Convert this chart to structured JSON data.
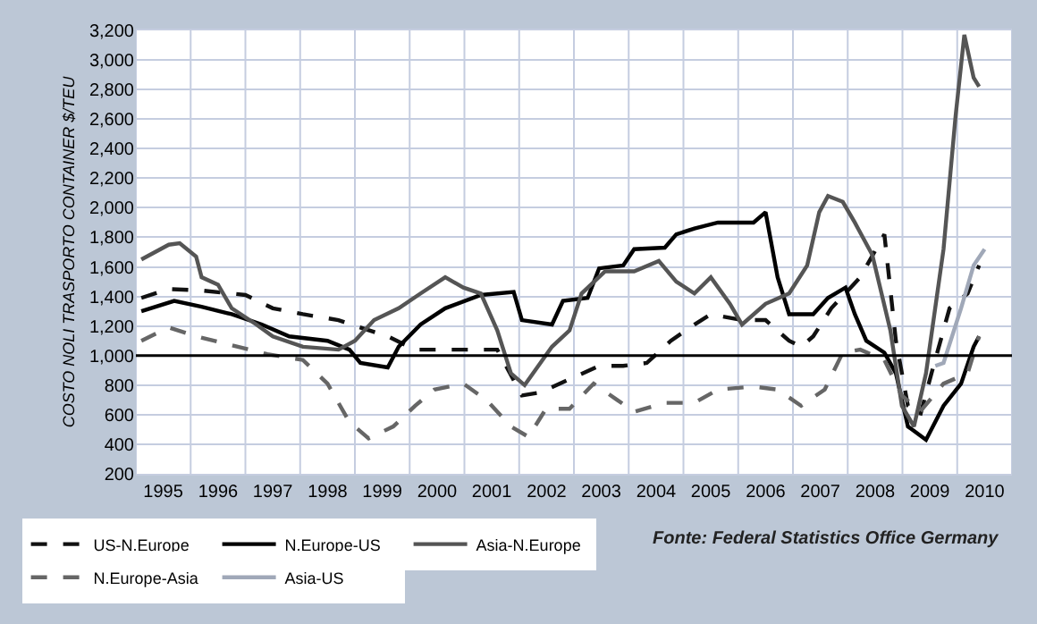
{
  "chart_data": {
    "type": "line",
    "ylabel": "COSTO NOLI TRASPORTO CONTAINER $/TEU",
    "annotations": [
      "Fonte: Federal Statistics Office Germany"
    ],
    "xlim": [
      1995,
      2011
    ],
    "xticks": [
      {
        "value": 1995,
        "label": null
      },
      {
        "value": 1995.5,
        "label": "1995"
      },
      {
        "value": 1996,
        "label": null
      },
      {
        "value": 1996.5,
        "label": "1996"
      },
      {
        "value": 1997,
        "label": null
      },
      {
        "value": 1997.5,
        "label": "1997"
      },
      {
        "value": 1998,
        "label": null
      },
      {
        "value": 1998.5,
        "label": "1998"
      },
      {
        "value": 1999,
        "label": null
      },
      {
        "value": 1999.5,
        "label": "1999"
      },
      {
        "value": 2000,
        "label": null
      },
      {
        "value": 2000.5,
        "label": "2000"
      },
      {
        "value": 2001,
        "label": null
      },
      {
        "value": 2001.5,
        "label": "2001"
      },
      {
        "value": 2002,
        "label": null
      },
      {
        "value": 2002.5,
        "label": "2002"
      },
      {
        "value": 2003,
        "label": null
      },
      {
        "value": 2003.5,
        "label": "2003"
      },
      {
        "value": 2004,
        "label": null
      },
      {
        "value": 2004.5,
        "label": "2004"
      },
      {
        "value": 2005,
        "label": null
      },
      {
        "value": 2005.5,
        "label": "2005"
      },
      {
        "value": 2006,
        "label": null
      },
      {
        "value": 2006.5,
        "label": "2006"
      },
      {
        "value": 2007,
        "label": null
      },
      {
        "value": 2007.5,
        "label": "2007"
      },
      {
        "value": 2008,
        "label": null
      },
      {
        "value": 2008.5,
        "label": "2008"
      },
      {
        "value": 2009,
        "label": null
      },
      {
        "value": 2009.5,
        "label": "2009"
      },
      {
        "value": 2010,
        "label": null
      },
      {
        "value": 2010.5,
        "label": "2010"
      },
      {
        "value": 2011,
        "label": null
      }
    ],
    "ylim": [
      200,
      3200
    ],
    "yticks": [
      {
        "value": 200,
        "label": "200"
      },
      {
        "value": 400,
        "label": "400"
      },
      {
        "value": 600,
        "label": "600"
      },
      {
        "value": 800,
        "label": "800"
      },
      {
        "value": 1000,
        "label": "1,000"
      },
      {
        "value": 1200,
        "label": "1,200"
      },
      {
        "value": 1400,
        "label": "1,400"
      },
      {
        "value": 1600,
        "label": "1,600"
      },
      {
        "value": 1800,
        "label": "1,800"
      },
      {
        "value": 2000,
        "label": "2,000"
      },
      {
        "value": 2200,
        "label": "2,200"
      },
      {
        "value": 2400,
        "label": "2,400"
      },
      {
        "value": 2600,
        "label": "2,600"
      },
      {
        "value": 2800,
        "label": "2,800"
      },
      {
        "value": 3000,
        "label": "3,000"
      },
      {
        "value": 3200,
        "label": "3,200"
      }
    ],
    "grid": true,
    "legend": "bottom left",
    "marker": "none",
    "ref_lines": [
      {
        "axis": "y",
        "value": 1000,
        "color": "#000000",
        "line_style": "solid"
      }
    ],
    "series": [
      {
        "name": "US-N.Europe",
        "color": "#111111",
        "line_style": "dashed",
        "x": [
          1995.1,
          1995.6,
          1996.2,
          1997.0,
          1997.5,
          1998.05,
          1998.7,
          1999.1,
          1999.6,
          2000.1,
          2000.9,
          2001.6,
          2002.05,
          2002.38,
          2002.92,
          2003.46,
          2003.9,
          2004.33,
          2004.77,
          2005.2,
          2005.5,
          2006.07,
          2006.5,
          2006.93,
          2007.15,
          2007.37,
          2007.7,
          2008.23,
          2008.67,
          2008.88,
          2009.1,
          2009.32,
          2009.53,
          2009.86,
          2010.19,
          2010.4
        ],
        "values": [
          1390,
          1450,
          1440,
          1410,
          1320,
          1280,
          1240,
          1190,
          1130,
          1040,
          1040,
          1040,
          730,
          750,
          840,
          930,
          930,
          950,
          1100,
          1210,
          1280,
          1240,
          1240,
          1100,
          1060,
          1130,
          1320,
          1530,
          1820,
          1100,
          660,
          590,
          880,
          1320,
          1420,
          1610
        ]
      },
      {
        "name": "N.Europe-US",
        "color": "#000000",
        "line_style": "solid",
        "x": [
          1995.1,
          1995.7,
          1996.2,
          1996.75,
          1997.3,
          1997.8,
          1998.5,
          1998.9,
          1999.1,
          1999.6,
          1999.8,
          2000.2,
          2000.65,
          2001.3,
          2001.9,
          2002.05,
          2002.6,
          2002.8,
          2003.25,
          2003.46,
          2003.9,
          2004.1,
          2004.66,
          2004.87,
          2005.2,
          2005.63,
          2006.28,
          2006.5,
          2006.72,
          2006.93,
          2007.37,
          2007.64,
          2007.96,
          2008.13,
          2008.34,
          2008.67,
          2008.88,
          2009.1,
          2009.43,
          2009.75,
          2010.07,
          2010.3,
          2010.4
        ],
        "values": [
          1300,
          1370,
          1330,
          1280,
          1210,
          1130,
          1100,
          1040,
          950,
          920,
          1060,
          1210,
          1320,
          1410,
          1430,
          1240,
          1210,
          1370,
          1390,
          1590,
          1610,
          1720,
          1730,
          1820,
          1860,
          1900,
          1900,
          1970,
          1530,
          1280,
          1280,
          1390,
          1460,
          1280,
          1100,
          1020,
          880,
          520,
          430,
          660,
          810,
          1060,
          1130
        ]
      },
      {
        "name": "Asia-N.Europe",
        "color": "#555555",
        "line_style": "solid",
        "x": [
          1995.1,
          1995.6,
          1995.8,
          1996.1,
          1996.2,
          1996.5,
          1996.75,
          1997.2,
          1997.5,
          1998.05,
          1998.7,
          1999.0,
          1999.35,
          1999.8,
          2000.2,
          2000.65,
          2000.98,
          2001.3,
          2001.6,
          2001.85,
          2002.1,
          2002.6,
          2002.92,
          2003.14,
          2003.57,
          2004.1,
          2004.55,
          2004.87,
          2005.2,
          2005.5,
          2005.85,
          2006.07,
          2006.5,
          2006.93,
          2007.26,
          2007.48,
          2007.64,
          2007.91,
          2008.13,
          2008.45,
          2008.78,
          2008.99,
          2009.21,
          2009.43,
          2009.75,
          2009.97,
          2010.13,
          2010.3,
          2010.4
        ],
        "values": [
          1650,
          1750,
          1760,
          1670,
          1530,
          1480,
          1320,
          1210,
          1130,
          1060,
          1040,
          1100,
          1240,
          1320,
          1420,
          1530,
          1460,
          1420,
          1170,
          880,
          800,
          1060,
          1170,
          1420,
          1570,
          1570,
          1640,
          1500,
          1420,
          1530,
          1350,
          1210,
          1350,
          1420,
          1610,
          1970,
          2080,
          2040,
          1900,
          1680,
          1170,
          660,
          520,
          880,
          1720,
          2620,
          3170,
          2880,
          2820
        ]
      },
      {
        "name": "N.Europe-Asia",
        "color": "#666666",
        "line_style": "dashed",
        "x": [
          1995.1,
          1995.6,
          1996.1,
          1996.75,
          1997.4,
          1998.05,
          1998.5,
          1998.9,
          1999.25,
          1999.7,
          2000.1,
          2000.45,
          2000.98,
          2001.4,
          2001.85,
          2002.17,
          2002.49,
          2002.92,
          2003.36,
          2003.79,
          2004.1,
          2004.66,
          2005.2,
          2005.63,
          2006.28,
          2006.72,
          2007.15,
          2007.58,
          2007.91,
          2008.23,
          2008.67,
          2008.99,
          2009.32,
          2009.75,
          2010.19,
          2010.4
        ],
        "values": [
          1100,
          1190,
          1130,
          1070,
          1010,
          970,
          810,
          550,
          440,
          520,
          660,
          770,
          810,
          700,
          520,
          450,
          640,
          640,
          810,
          700,
          620,
          680,
          680,
          770,
          790,
          770,
          660,
          770,
          1020,
          1040,
          970,
          730,
          620,
          810,
          880,
          1130
        ]
      },
      {
        "name": "Asia-US",
        "color": "#a0a8b8",
        "line_style": "solid",
        "x": [
          2009.6,
          2009.75,
          2010.07,
          2010.3,
          2010.5
        ],
        "values": [
          930,
          950,
          1320,
          1610,
          1720
        ]
      }
    ]
  }
}
